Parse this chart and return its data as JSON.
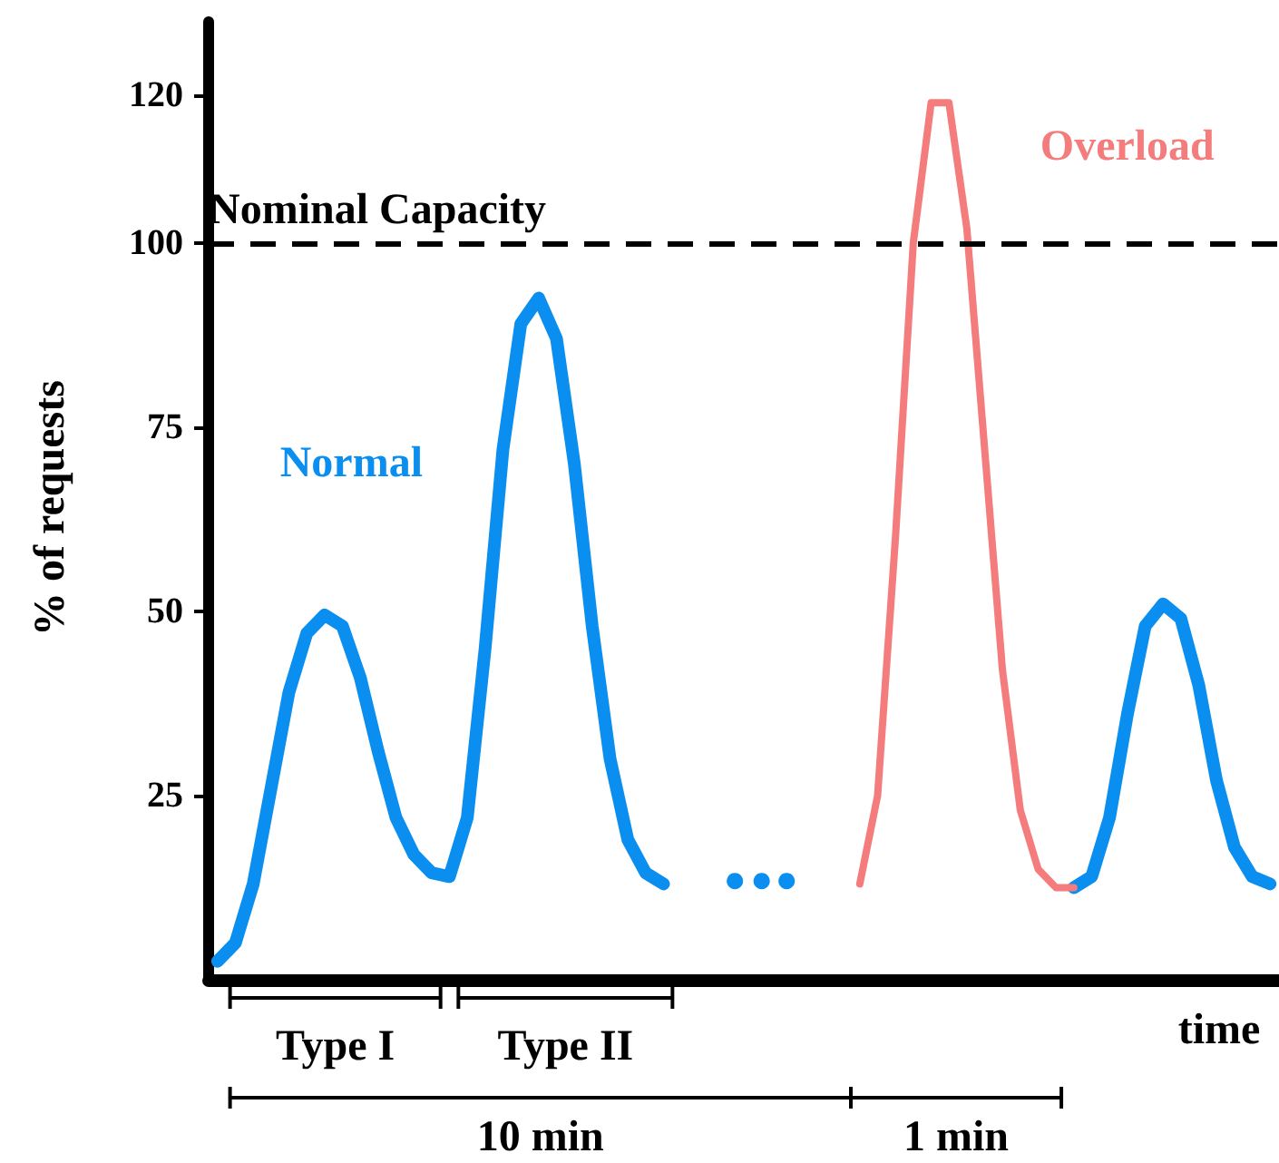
{
  "chart_data": {
    "type": "line",
    "xlabel": "time",
    "ylabel": "% of requests",
    "categories": [
      null,
      null,
      null,
      null,
      null,
      null,
      null,
      null,
      null,
      null,
      null,
      null,
      null,
      null,
      null,
      null,
      null,
      null,
      null,
      null,
      null,
      null,
      null,
      null,
      null,
      null,
      null,
      null,
      null,
      null,
      null,
      null,
      null,
      null,
      null,
      null,
      null,
      null,
      null,
      null,
      null,
      null,
      null,
      null,
      null,
      null,
      null,
      null,
      null,
      null,
      null,
      null,
      null,
      null,
      null,
      null,
      null,
      null,
      null,
      null
    ],
    "series": [
      {
        "name": "Normal",
        "color": "#0a8ff0",
        "values": [
          2.5,
          5,
          13,
          26,
          39,
          47,
          49.5,
          48,
          41,
          31,
          22,
          17,
          14.5,
          14,
          22,
          45,
          72,
          89,
          92.5,
          87,
          70,
          48,
          30,
          19,
          14.5,
          13,
          null,
          null,
          null,
          null,
          null,
          null,
          null,
          null,
          null,
          null,
          null,
          null,
          null,
          null,
          null,
          null,
          null,
          null,
          null,
          null,
          null,
          null,
          12.5,
          14,
          22,
          36,
          48,
          51,
          49,
          40,
          27,
          18,
          14,
          13
        ]
      },
      {
        "name": "Overload",
        "color": "#f47c7c",
        "values": [
          null,
          null,
          null,
          null,
          null,
          null,
          null,
          null,
          null,
          null,
          null,
          null,
          null,
          null,
          null,
          null,
          null,
          null,
          null,
          null,
          null,
          null,
          null,
          null,
          null,
          null,
          null,
          null,
          null,
          null,
          null,
          null,
          null,
          null,
          null,
          null,
          13,
          25,
          60,
          100,
          119,
          119,
          102,
          72,
          42,
          23,
          15,
          12.5,
          12.5,
          null,
          null,
          null,
          null,
          null,
          null,
          null,
          null,
          null,
          null,
          null
        ]
      }
    ],
    "ylim": [
      0,
      130
    ],
    "yticks": [
      25,
      50,
      75,
      100,
      120
    ],
    "ref_lines": [
      {
        "axis": "y",
        "value": 100,
        "label": "Nominal Capacity",
        "color": "#000000",
        "line_style": "dashed"
      }
    ],
    "annotations": [
      "Type I",
      "Type II",
      "10 min",
      "1 min"
    ],
    "legend": false,
    "grid": false,
    "marker": "none",
    "line_style": "solid",
    "tick_labels": "y"
  }
}
